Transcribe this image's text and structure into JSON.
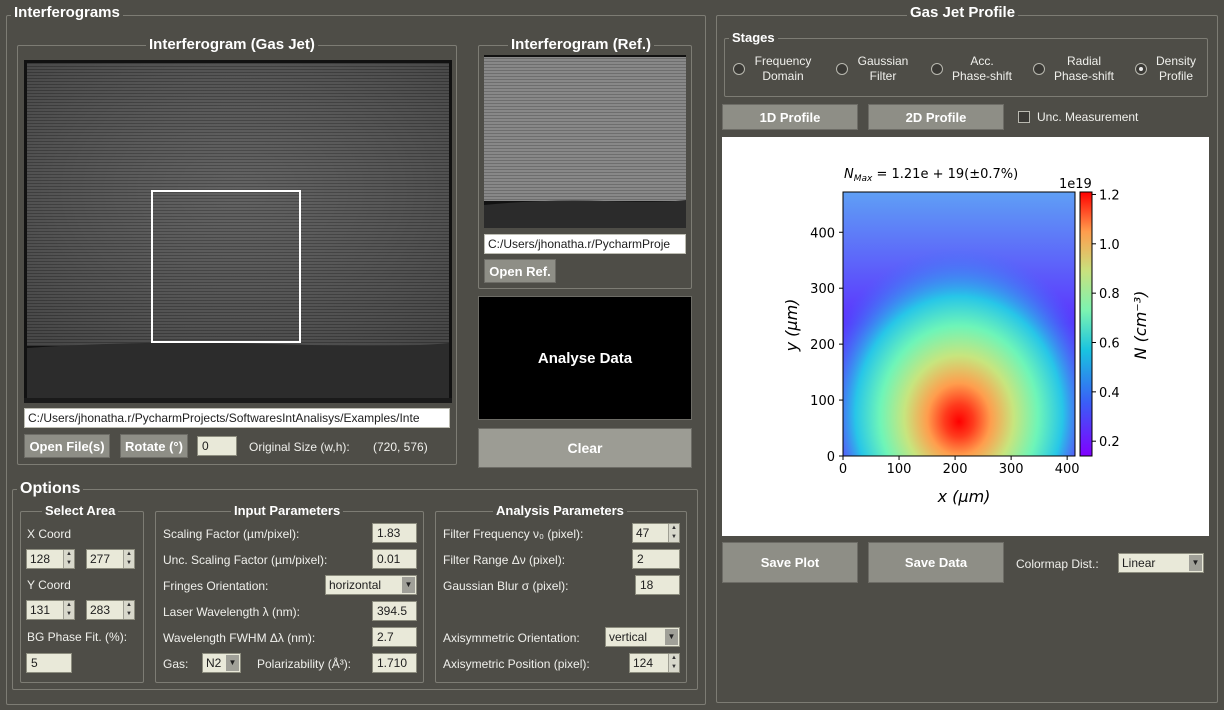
{
  "interferograms": {
    "title": "Interferograms",
    "gas_jet": {
      "title": "Interferogram (Gas Jet)",
      "path": "C:/Users/jhonatha.r/PycharmProjects/SoftwaresIntAnalisys/Examples/Inte",
      "open_files_label": "Open File(s)",
      "rotate_label": "Rotate (°)",
      "rotate_value": "0",
      "original_size_label": "Original Size (w,h):",
      "original_size_value": "(720, 576)"
    },
    "reference": {
      "title": "Interferogram (Ref.)",
      "path": "C:/Users/jhonatha.r/PycharmProje",
      "open_ref_label": "Open Ref."
    },
    "analyse_label": "Analyse Data",
    "clear_label": "Clear"
  },
  "options": {
    "title": "Options",
    "select_area": {
      "title": "Select Area",
      "x_coord_label": "X Coord",
      "x1": "128",
      "x2": "277",
      "y_coord_label": "Y Coord",
      "y1": "131",
      "y2": "283",
      "bg_phase_label": "BG Phase Fit. (%):",
      "bg_phase_value": "5"
    },
    "input_parameters": {
      "title": "Input Parameters",
      "scaling_factor_label": "Scaling Factor (µm/pixel):",
      "scaling_factor_value": "1.83",
      "unc_scaling_label": "Unc. Scaling Factor (µm/pixel):",
      "unc_scaling_value": "0.01",
      "fringes_label": "Fringes Orientation:",
      "fringes_value": "horizontal",
      "laser_label": "Laser Wavelength λ (nm):",
      "laser_value": "394.5",
      "fwhm_label": "Wavelength FWHM Δλ (nm):",
      "fwhm_value": "2.7",
      "gas_label": "Gas:",
      "gas_value": "N2",
      "polarizability_label": "Polarizability (Å³):",
      "polarizability_value": "1.710"
    },
    "analysis_parameters": {
      "title": "Analysis Parameters",
      "filter_freq_label": "Filter Frequency   ν₀ (pixel):",
      "filter_freq_value": "47",
      "filter_range_label": "Filter Range  Δν (pixel):",
      "filter_range_value": "2",
      "blur_label": "Gaussian Blur σ (pixel):",
      "blur_value": "18",
      "axi_orient_label": "Axisymmetric Orientation:",
      "axi_orient_value": "vertical",
      "axi_pos_label": "Axisymetric Position (pixel):",
      "axi_pos_value": "124"
    }
  },
  "profile": {
    "title": "Gas Jet Profile",
    "stages_title": "Stages",
    "stages": [
      {
        "label1": "Frequency",
        "label2": "Domain",
        "selected": false
      },
      {
        "label1": "Gaussian",
        "label2": "Filter",
        "selected": false
      },
      {
        "label1": "Acc.",
        "label2": "Phase-shift",
        "selected": false
      },
      {
        "label1": "Radial",
        "label2": "Phase-shift",
        "selected": false
      },
      {
        "label1": "Density",
        "label2": "Profile",
        "selected": true
      }
    ],
    "profile_1d_label": "1D Profile",
    "profile_2d_label": "2D Profile",
    "unc_label": "Unc. Measurement",
    "save_plot_label": "Save Plot",
    "save_data_label": "Save Data",
    "colormap_label": "Colormap Dist.:",
    "colormap_value": "Linear"
  },
  "chart_data": {
    "type": "heatmap",
    "title_prefix": "N",
    "title_sub": "Max",
    "title_value": " = 1.21e + 19(±0.7%)",
    "xlabel": "x (µm)",
    "ylabel": "y (µm)",
    "colorbar_label": "N (cm⁻³)",
    "colorbar_scale": "1e19",
    "x_ticks": [
      0,
      100,
      200,
      300,
      400
    ],
    "y_ticks": [
      0,
      100,
      200,
      300,
      400
    ],
    "colorbar_ticks": [
      0.2,
      0.4,
      0.6,
      0.8,
      1.0,
      1.2
    ],
    "xlim": [
      0,
      414
    ],
    "ylim": [
      0,
      472
    ],
    "clim": [
      0.14,
      1.21
    ],
    "peak": {
      "x": 207,
      "y": 60,
      "value": 1.21
    }
  }
}
